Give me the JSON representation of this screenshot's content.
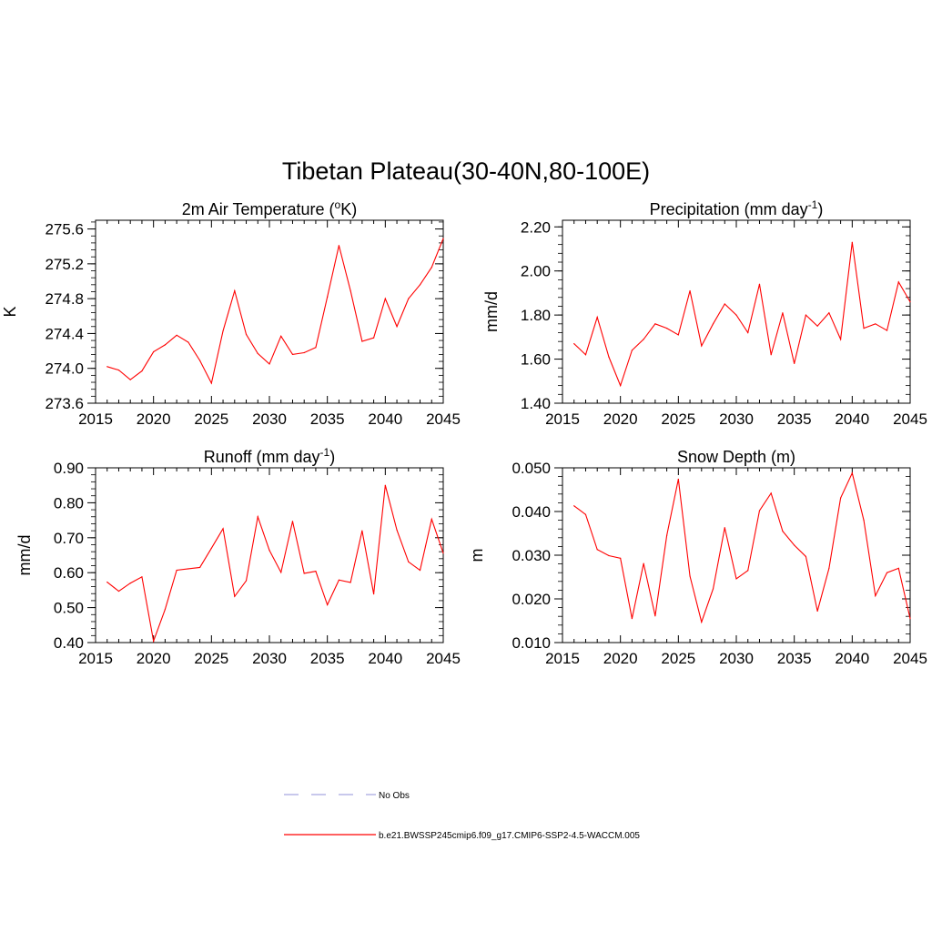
{
  "title": "Tibetan Plateau(30-40N,80-100E)",
  "legend": {
    "items": [
      {
        "label": "No Obs",
        "style": "dashed",
        "color": "#a8a8e0"
      },
      {
        "label": "b.e21.BWSSP245cmip6.f09_g17.CMIP6-SSP2-4.5-WACCM.005",
        "style": "solid",
        "color": "#ff0000"
      }
    ]
  },
  "chart_data": [
    {
      "type": "line",
      "title": "2m Air Temperature (",
      "title_sup": "o",
      "title_end": "K)",
      "ylabel": "K",
      "xlim": [
        2015,
        2045
      ],
      "ylim": [
        273.6,
        275.7
      ],
      "xticks": [
        2015,
        2020,
        2025,
        2030,
        2035,
        2040,
        2045
      ],
      "yticks": [
        273.6,
        274.0,
        274.4,
        274.8,
        275.2,
        275.6
      ],
      "ytick_decimals": 1,
      "x": [
        2016,
        2017,
        2018,
        2019,
        2020,
        2021,
        2022,
        2023,
        2024,
        2025,
        2026,
        2027,
        2028,
        2029,
        2030,
        2031,
        2032,
        2033,
        2034,
        2035,
        2036,
        2037,
        2038,
        2039,
        2040,
        2041,
        2042,
        2043,
        2044,
        2045
      ],
      "series": [
        {
          "color": "#ff0000",
          "values": [
            274.02,
            273.98,
            273.87,
            273.97,
            274.19,
            274.27,
            274.38,
            274.3,
            274.09,
            273.83,
            274.43,
            274.89,
            274.39,
            274.17,
            274.05,
            274.37,
            274.16,
            274.18,
            274.24,
            274.82,
            275.41,
            274.89,
            274.31,
            274.35,
            274.8,
            274.48,
            274.8,
            274.96,
            275.16,
            275.49
          ]
        }
      ]
    },
    {
      "type": "line",
      "title": "Precipitation (mm day",
      "title_sup": "-1",
      "title_end": ")",
      "ylabel": "mm/d",
      "xlim": [
        2015,
        2045
      ],
      "ylim": [
        1.4,
        2.23
      ],
      "xticks": [
        2015,
        2020,
        2025,
        2030,
        2035,
        2040,
        2045
      ],
      "yticks": [
        1.4,
        1.6,
        1.8,
        2.0,
        2.2
      ],
      "ytick_decimals": 2,
      "x": [
        2016,
        2017,
        2018,
        2019,
        2020,
        2021,
        2022,
        2023,
        2024,
        2025,
        2026,
        2027,
        2028,
        2029,
        2030,
        2031,
        2032,
        2033,
        2034,
        2035,
        2036,
        2037,
        2038,
        2039,
        2040,
        2041,
        2042,
        2043,
        2044,
        2045
      ],
      "series": [
        {
          "color": "#ff0000",
          "values": [
            1.67,
            1.62,
            1.79,
            1.61,
            1.48,
            1.64,
            1.69,
            1.76,
            1.74,
            1.71,
            1.91,
            1.66,
            1.76,
            1.85,
            1.8,
            1.72,
            1.94,
            1.62,
            1.81,
            1.58,
            1.8,
            1.75,
            1.81,
            1.69,
            2.13,
            1.74,
            1.76,
            1.73,
            1.95,
            1.86
          ]
        }
      ]
    },
    {
      "type": "line",
      "title": "Runoff (mm day",
      "title_sup": "-1",
      "title_end": ")",
      "ylabel": "mm/d",
      "xlim": [
        2015,
        2045
      ],
      "ylim": [
        0.4,
        0.9
      ],
      "xticks": [
        2015,
        2020,
        2025,
        2030,
        2035,
        2040,
        2045
      ],
      "yticks": [
        0.4,
        0.5,
        0.6,
        0.7,
        0.8,
        0.9
      ],
      "ytick_decimals": 2,
      "x": [
        2016,
        2017,
        2018,
        2019,
        2020,
        2021,
        2022,
        2023,
        2024,
        2025,
        2026,
        2027,
        2028,
        2029,
        2030,
        2031,
        2032,
        2033,
        2034,
        2035,
        2036,
        2037,
        2038,
        2039,
        2040,
        2041,
        2042,
        2043,
        2044,
        2045
      ],
      "series": [
        {
          "color": "#ff0000",
          "values": [
            0.573,
            0.547,
            0.57,
            0.588,
            0.404,
            0.495,
            0.607,
            0.611,
            0.615,
            0.67,
            0.726,
            0.532,
            0.577,
            0.76,
            0.664,
            0.601,
            0.747,
            0.598,
            0.604,
            0.508,
            0.579,
            0.572,
            0.72,
            0.539,
            0.85,
            0.722,
            0.631,
            0.607,
            0.753,
            0.656
          ]
        }
      ]
    },
    {
      "type": "line",
      "title": "Snow Depth (m)",
      "title_sup": "",
      "title_end": "",
      "ylabel": "m",
      "xlim": [
        2015,
        2045
      ],
      "ylim": [
        0.01,
        0.05
      ],
      "xticks": [
        2015,
        2020,
        2025,
        2030,
        2035,
        2040,
        2045
      ],
      "yticks": [
        0.01,
        0.02,
        0.03,
        0.04,
        0.05
      ],
      "ytick_decimals": 3,
      "x": [
        2016,
        2017,
        2018,
        2019,
        2020,
        2021,
        2022,
        2023,
        2024,
        2025,
        2026,
        2027,
        2028,
        2029,
        2030,
        2031,
        2032,
        2033,
        2034,
        2035,
        2036,
        2037,
        2038,
        2039,
        2040,
        2041,
        2042,
        2043,
        2044,
        2045
      ],
      "series": [
        {
          "color": "#ff0000",
          "values": [
            0.0413,
            0.0393,
            0.0313,
            0.0299,
            0.0293,
            0.0155,
            0.0281,
            0.0161,
            0.0345,
            0.0474,
            0.0252,
            0.0147,
            0.0223,
            0.0363,
            0.0246,
            0.0265,
            0.0402,
            0.0442,
            0.0355,
            0.0323,
            0.0297,
            0.0172,
            0.027,
            0.0431,
            0.0488,
            0.038,
            0.0207,
            0.026,
            0.027,
            0.0155
          ]
        }
      ]
    }
  ]
}
